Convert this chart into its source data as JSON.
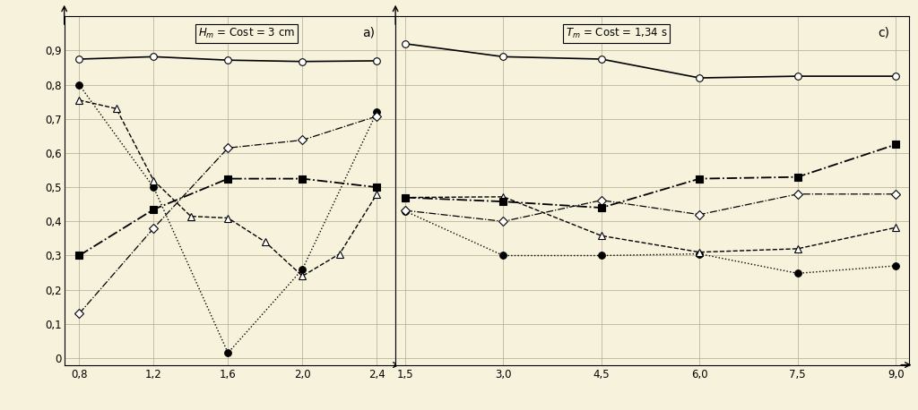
{
  "panel_a": {
    "label": "H_m = Cost = 3 cm",
    "xlim": [
      0.72,
      2.5
    ],
    "xticks": [
      0.8,
      1.2,
      1.6,
      2.0,
      2.4
    ],
    "xticklabels": [
      "0,8",
      "1,2",
      "1,6",
      "2,0",
      "2,4"
    ],
    "series": {
      "open_circle": {
        "x": [
          0.8,
          1.2,
          1.6,
          2.0,
          2.4
        ],
        "y": [
          0.875,
          0.882,
          0.872,
          0.868,
          0.87
        ],
        "marker": "o",
        "mfc": "white",
        "ls": "-",
        "lw": 1.2,
        "ms": 5.5
      },
      "filled_circle": {
        "x": [
          0.8,
          1.2,
          1.6,
          2.0,
          2.4
        ],
        "y": [
          0.8,
          0.5,
          0.015,
          0.26,
          0.72
        ],
        "marker": "o",
        "mfc": "black",
        "ls": ":",
        "lw": 1.0,
        "ms": 5.5
      },
      "open_triangle": {
        "x": [
          0.8,
          1.0,
          1.2,
          1.4,
          1.6,
          1.8,
          2.0,
          2.2,
          2.4
        ],
        "y": [
          0.755,
          0.73,
          0.52,
          0.415,
          0.41,
          0.34,
          0.24,
          0.305,
          0.48
        ],
        "marker": "^",
        "mfc": "white",
        "ls": "--",
        "lw": 1.0,
        "ms": 6
      },
      "open_diamond": {
        "x": [
          0.8,
          1.2,
          1.6,
          2.0,
          2.4
        ],
        "y": [
          0.13,
          0.38,
          0.615,
          0.638,
          0.708
        ],
        "marker": "D",
        "mfc": "white",
        "ls": "-.",
        "lw": 0.9,
        "ms": 5
      },
      "filled_square": {
        "x": [
          0.8,
          1.2,
          1.6,
          2.0,
          2.4
        ],
        "y": [
          0.3,
          0.435,
          0.525,
          0.525,
          0.5
        ],
        "marker": "s",
        "mfc": "black",
        "ls": "-.",
        "lw": 1.3,
        "ms": 5.5
      }
    }
  },
  "panel_c": {
    "label": "T_m = Cost = 1,34 s",
    "xlim": [
      1.35,
      9.2
    ],
    "xticks": [
      1.5,
      3.0,
      4.5,
      6.0,
      7.5,
      9.0
    ],
    "xticklabels": [
      "1,5",
      "3,0",
      "4,5",
      "6,0",
      "7,5",
      "9,0"
    ],
    "series": {
      "open_circle": {
        "x": [
          1.5,
          3.0,
          4.5,
          6.0,
          7.5,
          9.0
        ],
        "y": [
          0.92,
          0.882,
          0.875,
          0.82,
          0.825,
          0.825
        ],
        "marker": "o",
        "mfc": "white",
        "ls": "-",
        "lw": 1.2,
        "ms": 5.5
      },
      "filled_circle": {
        "x": [
          1.5,
          3.0,
          4.5,
          6.0,
          7.5,
          9.0
        ],
        "y": [
          0.43,
          0.3,
          0.3,
          0.305,
          0.248,
          0.27
        ],
        "marker": "o",
        "mfc": "black",
        "ls": ":",
        "lw": 1.0,
        "ms": 5.5
      },
      "open_triangle": {
        "x": [
          1.5,
          3.0,
          4.5,
          6.0,
          7.5,
          9.0
        ],
        "y": [
          0.47,
          0.472,
          0.358,
          0.31,
          0.32,
          0.382
        ],
        "marker": "^",
        "mfc": "white",
        "ls": "--",
        "lw": 1.0,
        "ms": 6
      },
      "open_diamond": {
        "x": [
          1.5,
          3.0,
          4.5,
          6.0,
          7.5,
          9.0
        ],
        "y": [
          0.432,
          0.4,
          0.462,
          0.42,
          0.48,
          0.48
        ],
        "marker": "D",
        "mfc": "white",
        "ls": "-.",
        "lw": 0.9,
        "ms": 5
      },
      "filled_square": {
        "x": [
          1.5,
          3.0,
          4.5,
          6.0,
          7.5,
          9.0
        ],
        "y": [
          0.47,
          0.458,
          0.44,
          0.525,
          0.53,
          0.625
        ],
        "marker": "s",
        "mfc": "black",
        "ls": "-.",
        "lw": 1.3,
        "ms": 5.5
      }
    }
  },
  "ylim": [
    -0.02,
    1.0
  ],
  "yticks": [
    0.0,
    0.1,
    0.2,
    0.3,
    0.4,
    0.5,
    0.6,
    0.7,
    0.8,
    0.9
  ],
  "yticklabels": [
    "0",
    "0,1",
    "0,2",
    "0,3",
    "0,4",
    "0,5",
    "0,6",
    "0,7",
    "0,8",
    "0,9"
  ],
  "background_color": "#f7f2dc",
  "grid_color": "#b0aa90",
  "marker_size": 5.5
}
